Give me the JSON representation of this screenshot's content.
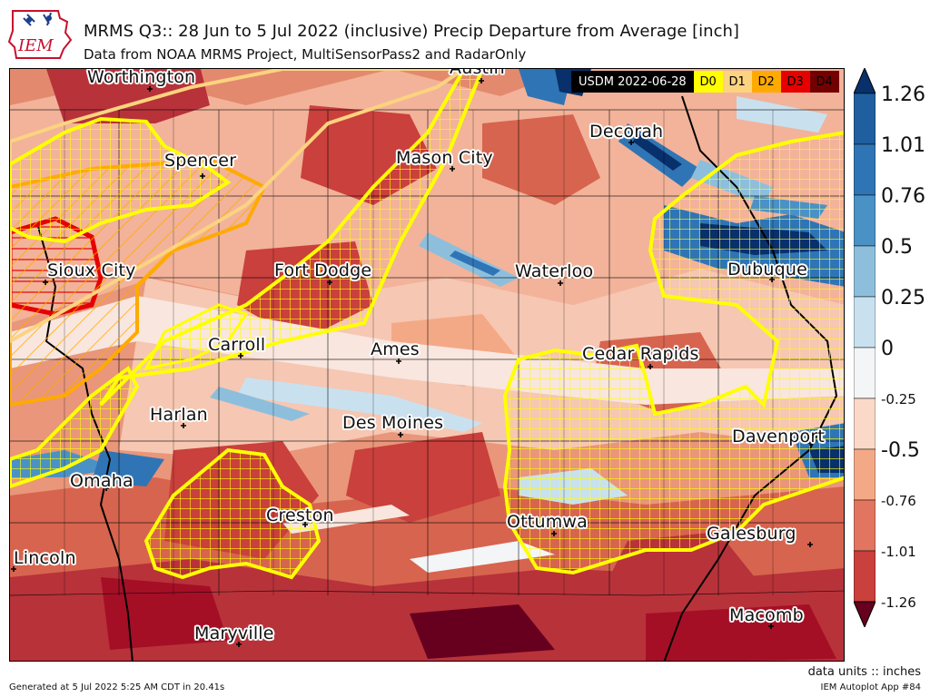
{
  "header": {
    "logo_text": "IEM",
    "title": "MRMS Q3:: 28 Jun to 5 Jul 2022 (inclusive) Precip Departure from Average [inch]",
    "subtitle": "Data from NOAA MRMS Project, MultiSensorPass2 and RadarOnly"
  },
  "usdm_legend": {
    "date_label": "USDM 2022-06-28",
    "categories": [
      {
        "label": "D0",
        "color": "#ffff00"
      },
      {
        "label": "D1",
        "color": "#fcd37f"
      },
      {
        "label": "D2",
        "color": "#ffaa00"
      },
      {
        "label": "D3",
        "color": "#e60000"
      },
      {
        "label": "D4",
        "color": "#730000"
      }
    ]
  },
  "cities": [
    {
      "name": "Worthington"
    },
    {
      "name": "Austin"
    },
    {
      "name": "Decorah"
    },
    {
      "name": "Spencer"
    },
    {
      "name": "Mason City"
    },
    {
      "name": "Sioux City"
    },
    {
      "name": "Fort Dodge"
    },
    {
      "name": "Waterloo"
    },
    {
      "name": "Dubuque"
    },
    {
      "name": "Carroll"
    },
    {
      "name": "Ames"
    },
    {
      "name": "Cedar Rapids"
    },
    {
      "name": "Harlan"
    },
    {
      "name": "Des Moines"
    },
    {
      "name": "Davenport"
    },
    {
      "name": "Omaha"
    },
    {
      "name": "Creston"
    },
    {
      "name": "Ottumwa"
    },
    {
      "name": "Galesburg"
    },
    {
      "name": "Lincoln"
    },
    {
      "name": "Macomb"
    },
    {
      "name": "Maryville"
    }
  ],
  "colorbar": {
    "ticks": [
      "1.26",
      "1.01",
      "0.76",
      "0.5",
      "0.25",
      "0",
      "-0.25",
      "-0.5",
      "-0.76",
      "-1.01",
      "-1.26"
    ],
    "colors": [
      "#1f5fa0",
      "#2f75b5",
      "#4a92c6",
      "#8dbfdd",
      "#c9e1ef",
      "#f3f5f7",
      "#fbd9c8",
      "#f4a986",
      "#e27560",
      "#c9403c",
      "#a50f26"
    ],
    "over_color": "#08306b",
    "under_color": "#67001f"
  },
  "units_label": "data units :: inches",
  "footer": {
    "generated": "Generated at 5 Jul 2022 5:25 AM CDT in 20.41s",
    "app": "IEM Autoplot App #84"
  }
}
